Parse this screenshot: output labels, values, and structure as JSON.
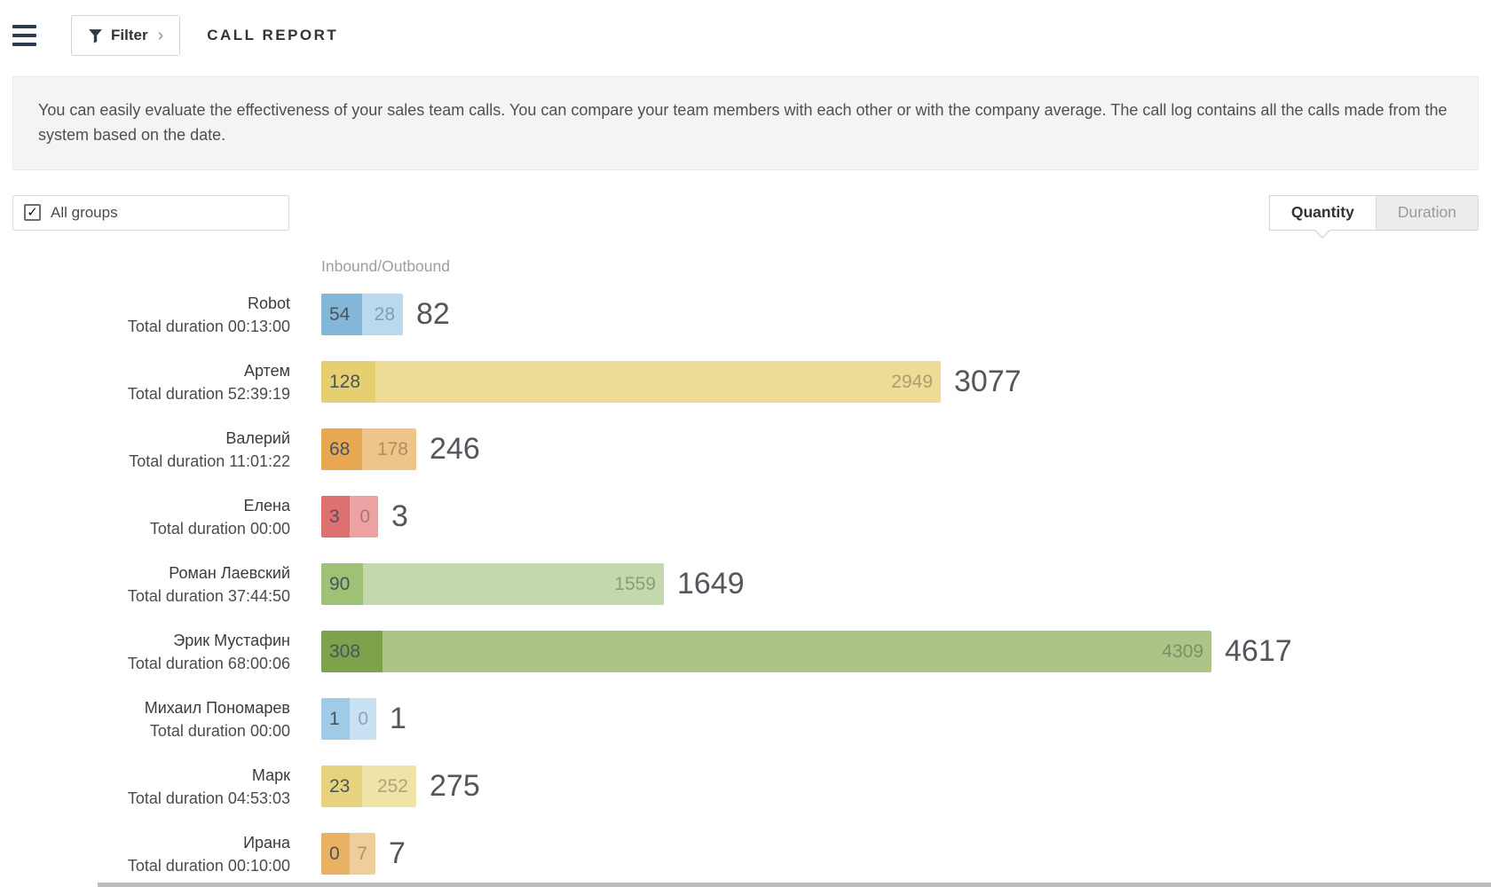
{
  "header": {
    "filter": {
      "label": "Filter",
      "chevron": "›"
    },
    "title": "CALL REPORT"
  },
  "info_text": "You can easily evaluate the effectiveness of your sales team calls. You can compare your team members with each other or with the company average. The call log contains all the calls made from the system based on the date.",
  "filters": {
    "all_groups": {
      "label": "All groups",
      "checked": true,
      "checkmark": "✓"
    },
    "view_tabs": [
      {
        "label": "Quantity",
        "active": true
      },
      {
        "label": "Duration",
        "active": false
      }
    ]
  },
  "chart_data": {
    "type": "bar",
    "orientation": "horizontal",
    "group_header": "Inbound/Outbound",
    "series_names": [
      "Inbound",
      "Outbound"
    ],
    "rows": [
      {
        "name": "Robot",
        "duration": "Total duration 00:13:00",
        "inbound": 54,
        "outbound": 28,
        "total": 82,
        "color_dark": "#82b7d8",
        "color_light": "#b9d9ee",
        "w1": 46,
        "w2": 46
      },
      {
        "name": "Артем",
        "duration": "Total duration 52:39:19",
        "inbound": 128,
        "outbound": 2949,
        "total": 3077,
        "color_dark": "#e5cf70",
        "color_light": "#eddc95",
        "w1": 61,
        "w2": 637
      },
      {
        "name": "Валерий",
        "duration": "Total duration 11:01:22",
        "inbound": 68,
        "outbound": 178,
        "total": 246,
        "color_dark": "#e7a851",
        "color_light": "#eec488",
        "w1": 46,
        "w2": 61
      },
      {
        "name": "Елена",
        "duration": "Total duration 00:00",
        "inbound": 3,
        "outbound": 0,
        "total": 3,
        "color_dark": "#df7070",
        "color_light": "#eda3a3",
        "w1": 32,
        "w2": 32
      },
      {
        "name": "Роман Лаевский",
        "duration": "Total duration 37:44:50",
        "inbound": 90,
        "outbound": 1559,
        "total": 1649,
        "color_dark": "#9dc276",
        "color_light": "#c3d9ab",
        "w1": 47,
        "w2": 339
      },
      {
        "name": "Эрик Мустафин",
        "duration": "Total duration 68:00:06",
        "inbound": 308,
        "outbound": 4309,
        "total": 4617,
        "color_dark": "#7da24c",
        "color_light": "#adc489",
        "w1": 69,
        "w2": 934
      },
      {
        "name": "Михаил Пономарев",
        "duration": "Total duration 00:00",
        "inbound": 1,
        "outbound": 0,
        "total": 1,
        "color_dark": "#9fcbe8",
        "color_light": "#c8e2f4",
        "w1": 32,
        "w2": 30
      },
      {
        "name": "Марк",
        "duration": "Total duration 04:53:03",
        "inbound": 23,
        "outbound": 252,
        "total": 275,
        "color_dark": "#e7d37e",
        "color_light": "#f0e3a8",
        "w1": 46,
        "w2": 61
      },
      {
        "name": "Ирана",
        "duration": "Total duration 00:10:00",
        "inbound": 0,
        "outbound": 7,
        "total": 7,
        "color_dark": "#e9b164",
        "color_light": "#efce9b",
        "w1": 32,
        "w2": 29
      }
    ]
  }
}
